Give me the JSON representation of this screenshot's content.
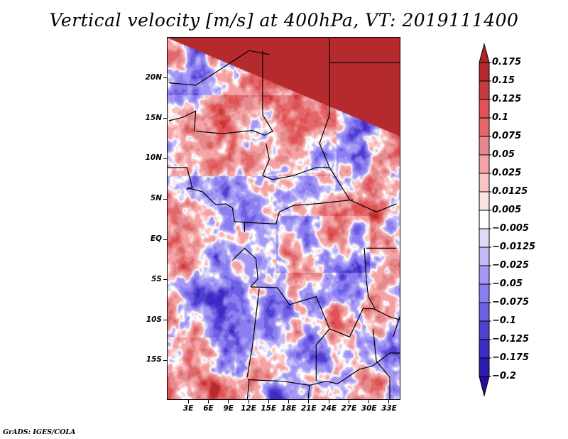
{
  "title": "Vertical velocity [m/s] at 400hPa, VT: 2019111400",
  "credit": "GrADS: IGES/COLA",
  "map": {
    "variable": "Vertical velocity",
    "units": "m/s",
    "level": "400hPa",
    "valid_time": "2019111400",
    "lon_range": [
      -0.2,
      34.7
    ],
    "lat_range": [
      -19.9,
      25.1
    ],
    "lat_ticks": [
      {
        "value": 20,
        "label": "20N"
      },
      {
        "value": 15,
        "label": "15N"
      },
      {
        "value": 10,
        "label": "10N"
      },
      {
        "value": 5,
        "label": "5N"
      },
      {
        "value": 0,
        "label": "EQ"
      },
      {
        "value": -5,
        "label": "5S"
      },
      {
        "value": -10,
        "label": "10S"
      },
      {
        "value": -15,
        "label": "15S"
      }
    ],
    "lon_ticks": [
      {
        "value": 3,
        "label": "3E"
      },
      {
        "value": 6,
        "label": "6E"
      },
      {
        "value": 9,
        "label": "9E"
      },
      {
        "value": 12,
        "label": "12E"
      },
      {
        "value": 15,
        "label": "15E"
      },
      {
        "value": 18,
        "label": "18E"
      },
      {
        "value": 21,
        "label": "21E"
      },
      {
        "value": 24,
        "label": "24E"
      },
      {
        "value": 27,
        "label": "27E"
      },
      {
        "value": 30,
        "label": "30E"
      },
      {
        "value": 33,
        "label": "33E"
      }
    ]
  },
  "colorbar": {
    "labels": [
      "0.175",
      "0.15",
      "0.125",
      "0.1",
      "0.075",
      "0.05",
      "0.025",
      "0.0125",
      "0.005",
      "−0.005",
      "−0.0125",
      "−0.025",
      "−0.05",
      "−0.075",
      "−0.1",
      "−0.125",
      "−0.175",
      "−0.2"
    ],
    "levels": [
      0.175,
      0.15,
      0.125,
      0.1,
      0.075,
      0.05,
      0.025,
      0.0125,
      0.005,
      -0.005,
      -0.0125,
      -0.025,
      -0.05,
      -0.075,
      -0.1,
      -0.125,
      -0.175,
      -0.2
    ],
    "top_arrow_color": "#b02428",
    "bottom_arrow_color": "#2a0aa0",
    "box_colors": [
      "#b52a2c",
      "#c83a3c",
      "#e05254",
      "#e4686a",
      "#e48a8c",
      "#f4a2a4",
      "#fac4c4",
      "#fde4e4",
      "#ffffff",
      "#dcdcfa",
      "#c2baf8",
      "#a498f4",
      "#8a7ef0",
      "#6e60e0",
      "#5040d2",
      "#3e2ac4",
      "#2e1cb0"
    ]
  }
}
